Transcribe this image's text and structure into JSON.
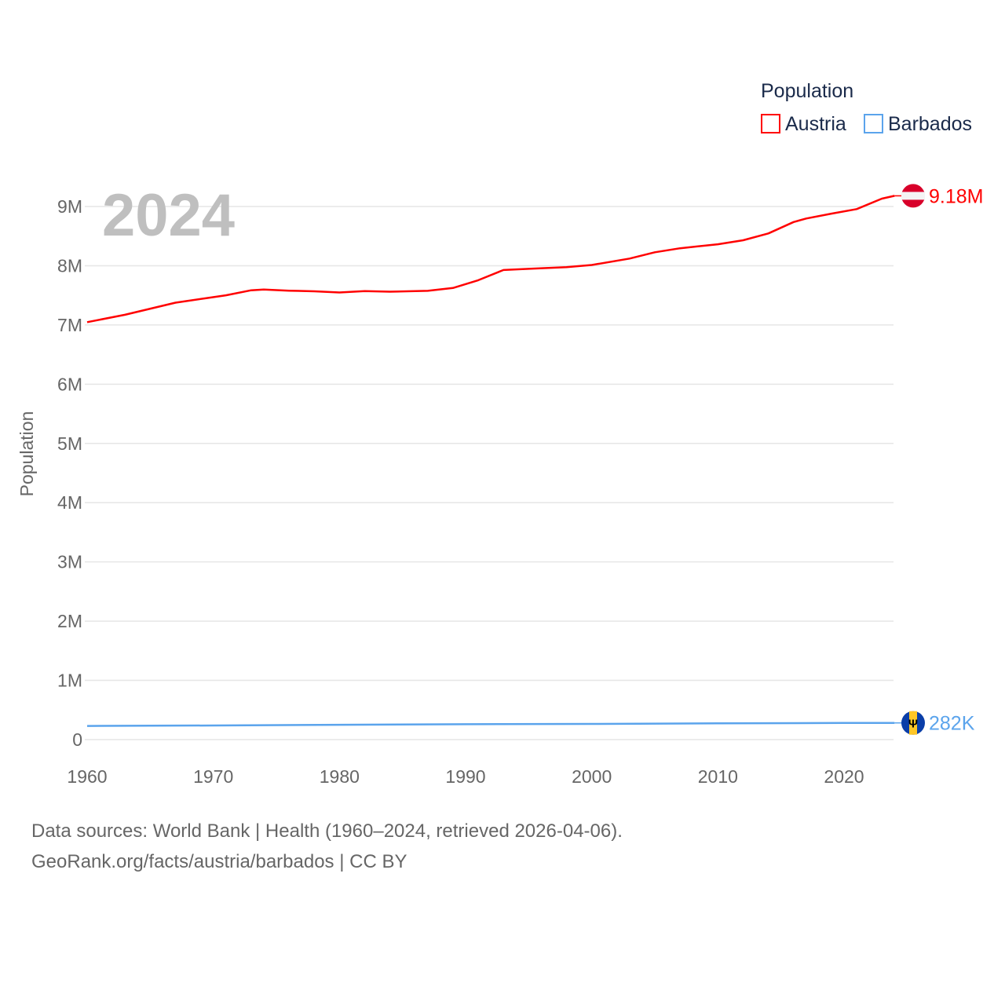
{
  "chart_data": {
    "type": "line",
    "title_year": "2024",
    "ylabel": "Population",
    "xlim": [
      1960,
      2024
    ],
    "ylim": [
      0,
      9000000
    ],
    "y_ticks": [
      {
        "v": 0,
        "label": "0"
      },
      {
        "v": 1000000,
        "label": "1M"
      },
      {
        "v": 2000000,
        "label": "2M"
      },
      {
        "v": 3000000,
        "label": "3M"
      },
      {
        "v": 4000000,
        "label": "4M"
      },
      {
        "v": 5000000,
        "label": "5M"
      },
      {
        "v": 6000000,
        "label": "6M"
      },
      {
        "v": 7000000,
        "label": "7M"
      },
      {
        "v": 8000000,
        "label": "8M"
      },
      {
        "v": 9000000,
        "label": "9M"
      }
    ],
    "x_ticks": [
      {
        "v": 1960,
        "label": "1960"
      },
      {
        "v": 1970,
        "label": "1970"
      },
      {
        "v": 1980,
        "label": "1980"
      },
      {
        "v": 1990,
        "label": "1990"
      },
      {
        "v": 2000,
        "label": "2000"
      },
      {
        "v": 2010,
        "label": "2010"
      },
      {
        "v": 2020,
        "label": "2020"
      }
    ],
    "grid": true,
    "legend": {
      "title": "Population",
      "placement": "top-right"
    },
    "series": [
      {
        "name": "Austria",
        "color": "#ff0000",
        "end_label": "9.18M",
        "x": [
          1960,
          1963,
          1967,
          1971,
          1973,
          1974,
          1976,
          1978,
          1980,
          1982,
          1984,
          1987,
          1989,
          1991,
          1993,
          1995,
          1998,
          2000,
          2003,
          2005,
          2007,
          2010,
          2012,
          2014,
          2016,
          2017,
          2019,
          2021,
          2023,
          2024
        ],
        "values": [
          7047000,
          7172000,
          7376000,
          7501000,
          7586000,
          7599000,
          7579000,
          7568000,
          7549000,
          7571000,
          7562000,
          7576000,
          7624000,
          7755000,
          7928000,
          7948000,
          7977000,
          8012000,
          8121000,
          8227000,
          8295000,
          8363000,
          8430000,
          8546000,
          8737000,
          8797000,
          8879000,
          8956000,
          9132000,
          9180000
        ]
      },
      {
        "name": "Barbados",
        "color": "#5ba4ec",
        "end_label": "282K",
        "x": [
          1960,
          1970,
          1980,
          1990,
          2000,
          2010,
          2020,
          2024
        ],
        "values": [
          231000,
          239000,
          250000,
          260000,
          265000,
          274000,
          281000,
          282000
        ]
      }
    ]
  },
  "footer": {
    "line1": "Data sources: World Bank | Health (1960–2024, retrieved 2026-04-06).",
    "line2": "GeoRank.org/facts/austria/barbados | CC BY"
  }
}
